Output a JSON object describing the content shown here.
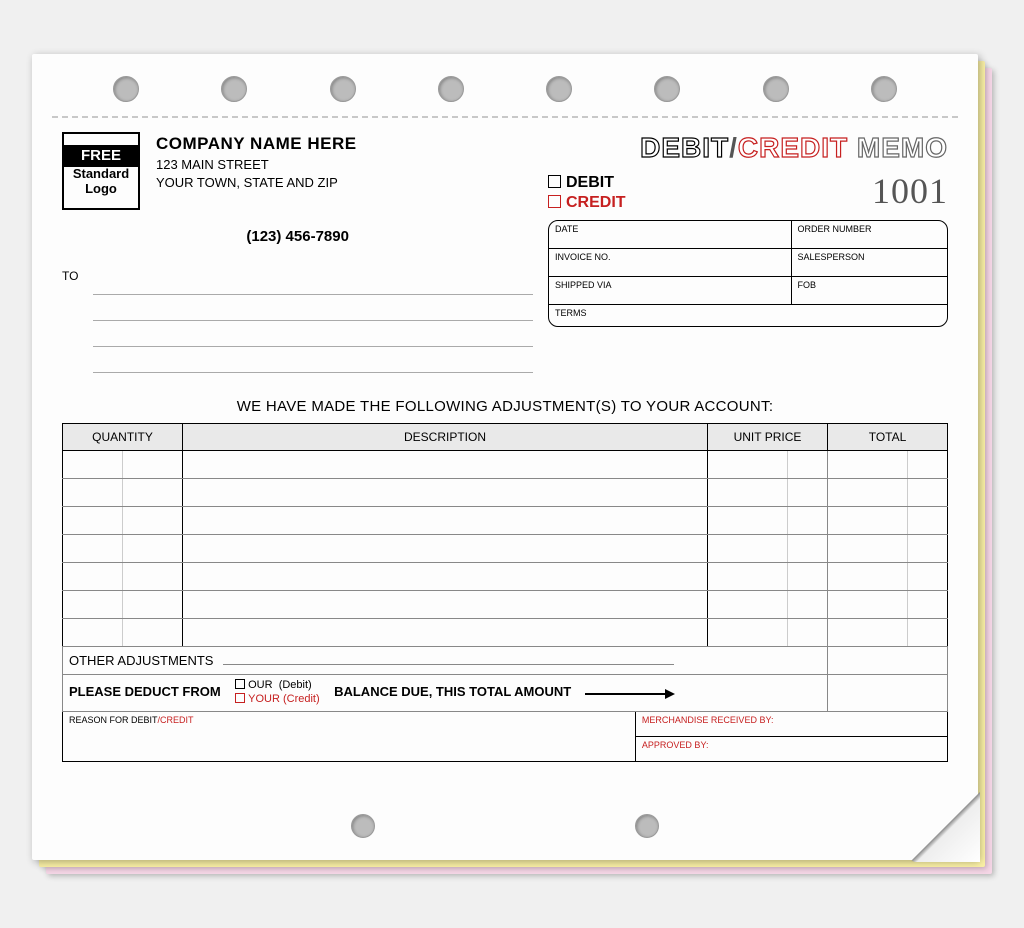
{
  "holes": {
    "top_count": 8,
    "bottom_count": 2,
    "color": "#bcbcbc"
  },
  "logo": {
    "line1": "FREE",
    "line2": "Standard",
    "line3": "Logo"
  },
  "company": {
    "name": "COMPANY NAME HERE",
    "addr1": "123 MAIN STREET",
    "addr2": "YOUR TOWN, STATE AND ZIP",
    "phone": "(123) 456-7890"
  },
  "title": {
    "debit": "DEBIT",
    "slash": "/",
    "credit": "CREDIT",
    "memo": "MEMO"
  },
  "checks": {
    "debit": "DEBIT",
    "credit": "CREDIT"
  },
  "form_number": "1001",
  "info": {
    "date": "DATE",
    "order_no": "ORDER NUMBER",
    "invoice_no": "INVOICE NO.",
    "salesperson": "SALESPERSON",
    "shipped_via": "SHIPPED VIA",
    "fob": "FOB",
    "terms": "TERMS"
  },
  "to_label": "TO",
  "adjust_heading": "WE HAVE MADE THE FOLLOWING ADJUSTMENT(S) TO YOUR ACCOUNT:",
  "columns": {
    "quantity": "QUANTITY",
    "description": "DESCRIPTION",
    "unit_price": "UNIT PRICE",
    "total": "TOTAL"
  },
  "item_row_count": 7,
  "other_adjustments": "OTHER ADJUSTMENTS",
  "deduct": {
    "prefix": "PLEASE DEDUCT FROM",
    "our": "OUR",
    "our_note": "(Debit)",
    "your": "YOUR",
    "your_note": "(Credit)",
    "suffix": "BALANCE DUE, THIS TOTAL AMOUNT"
  },
  "reason": {
    "label": "REASON FOR DEBIT",
    "credit": "/CREDIT"
  },
  "merch_received": "MERCHANDISE RECEIVED BY:",
  "approved_by": "APPROVED BY:",
  "colors": {
    "red": "#c62020",
    "outline_gray": "#666666",
    "sheet_pink": "#f5d6e6",
    "sheet_yellow": "#faf0a5",
    "header_gray": "#e9e9e9"
  }
}
